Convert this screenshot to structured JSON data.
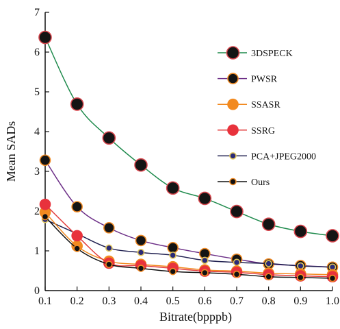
{
  "chart_data": {
    "type": "line",
    "title": "",
    "xlabel": "Bitrate(bpppb)",
    "ylabel": "Mean SADs",
    "xlim": [
      0.1,
      1.0
    ],
    "ylim": [
      0,
      7
    ],
    "x": [
      0.1,
      0.2,
      0.3,
      0.4,
      0.5,
      0.6,
      0.7,
      0.8,
      0.9,
      1.0
    ],
    "x_ticks": [
      "0.1",
      "0.2",
      "0.3",
      "0.4",
      "0.5",
      "0.6",
      "0.7",
      "0.8",
      "0.9",
      "1.0"
    ],
    "y_ticks": [
      "0",
      "1",
      "2",
      "3",
      "4",
      "5",
      "6",
      "7"
    ],
    "grid": false,
    "legend_position": "top-right",
    "series": [
      {
        "name": "3DSPECK",
        "values": [
          6.37,
          4.69,
          3.84,
          3.16,
          2.58,
          2.32,
          1.99,
          1.67,
          1.49,
          1.38
        ],
        "line_color": "#1e8a4c",
        "marker_fill": "#141414",
        "marker_edge": "#d9474e",
        "marker_size": 9
      },
      {
        "name": "PWSR",
        "values": [
          3.28,
          2.11,
          1.58,
          1.26,
          1.08,
          0.93,
          0.79,
          0.67,
          0.63,
          0.59
        ],
        "line_color": "#6b2d86",
        "marker_fill": "#141414",
        "marker_edge": "#f08a24",
        "marker_size": 7.5
      },
      {
        "name": "SSASR",
        "values": [
          1.97,
          1.12,
          0.74,
          0.66,
          0.6,
          0.52,
          0.49,
          0.44,
          0.42,
          0.4
        ],
        "line_color": "#f28a20",
        "marker_fill": "#f28a20",
        "marker_edge": "#f28a20",
        "marker_size": 7.5
      },
      {
        "name": "SSRG",
        "values": [
          2.17,
          1.38,
          0.69,
          0.63,
          0.56,
          0.49,
          0.46,
          0.4,
          0.37,
          0.35
        ],
        "line_color": "#e23a3a",
        "marker_fill": "#e8323c",
        "marker_edge": "#e8323c",
        "marker_size": 7.5
      },
      {
        "name": "PCA+JPEG2000",
        "values": [
          1.79,
          1.43,
          1.07,
          0.96,
          0.89,
          0.76,
          0.71,
          0.68,
          0.62,
          0.59
        ],
        "line_color": "#202050",
        "marker_fill": "#2a2a78",
        "marker_edge": "#e3c85e",
        "marker_size": 4.5
      },
      {
        "name": "Ours",
        "values": [
          1.86,
          1.06,
          0.66,
          0.56,
          0.48,
          0.45,
          0.41,
          0.35,
          0.33,
          0.31
        ],
        "line_color": "#111111",
        "marker_fill": "#111111",
        "marker_edge": "#f08a24",
        "marker_size": 4.5
      }
    ]
  }
}
